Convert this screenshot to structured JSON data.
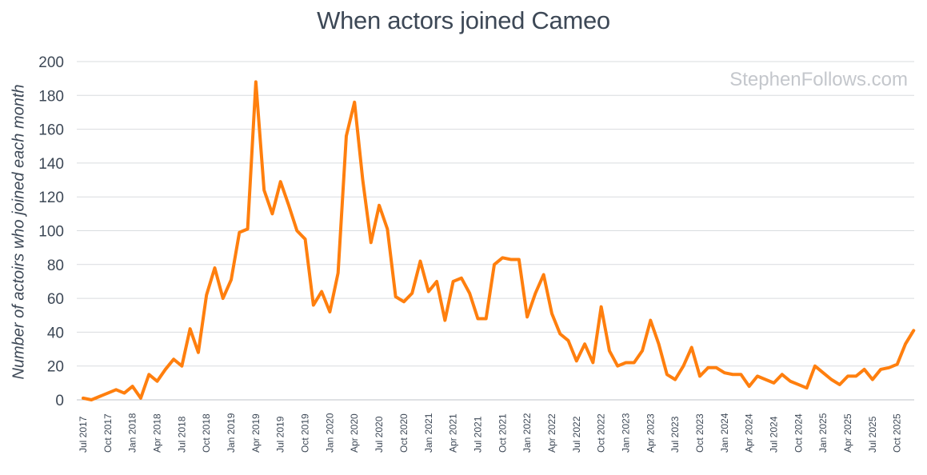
{
  "chart_data": {
    "type": "line",
    "title": "When actors joined Cameo",
    "xlabel": "",
    "ylabel": "Number of actoirs who joined each month",
    "ylim": [
      0,
      200
    ],
    "yticks": [
      0,
      20,
      40,
      60,
      80,
      100,
      120,
      140,
      160,
      180,
      200
    ],
    "grid": true,
    "color": "#ff7f0e",
    "watermark": "StephenFollows.com",
    "x_start": "Jul 2017",
    "tick_labels": [
      "Jul 2017",
      "Oct 2017",
      "Jan 2018",
      "Apr 2018",
      "Jul 2018",
      "Oct 2018",
      "Jan 2019",
      "Apr 2019",
      "Jul 2019",
      "Oct 2019",
      "Jan 2020",
      "Apr 2020",
      "Jul 2020",
      "Oct 2020",
      "Jan 2021",
      "Apr 2021",
      "Jul 2021",
      "Oct 2021",
      "Jan 2022",
      "Apr 2022",
      "Jul 2022",
      "Oct 2022",
      "Jan 2023",
      "Apr 2023",
      "Jul 2023",
      "Oct 2023",
      "Jan 2024",
      "Apr 2024",
      "Jul 2024",
      "Oct 2024",
      "Jan 2025",
      "Apr 2025",
      "Jul 2025",
      "Oct 2025"
    ],
    "values": [
      1,
      0,
      2,
      4,
      6,
      4,
      8,
      1,
      15,
      11,
      18,
      24,
      20,
      42,
      28,
      62,
      78,
      60,
      71,
      99,
      101,
      188,
      124,
      110,
      129,
      115,
      100,
      95,
      56,
      64,
      52,
      75,
      156,
      176,
      130,
      93,
      115,
      101,
      61,
      58,
      63,
      82,
      64,
      70,
      47,
      70,
      72,
      63,
      48,
      48,
      80,
      84,
      83,
      83,
      49,
      63,
      74,
      51,
      39,
      35,
      23,
      33,
      22,
      55,
      29,
      20,
      22,
      22,
      29,
      47,
      33,
      15,
      12,
      20,
      31,
      14,
      19,
      19,
      16,
      15,
      15,
      8,
      14,
      12,
      10,
      15,
      11,
      9,
      7,
      20,
      16,
      12,
      9,
      14,
      14,
      18,
      12,
      18,
      19,
      21,
      33,
      41
    ]
  }
}
